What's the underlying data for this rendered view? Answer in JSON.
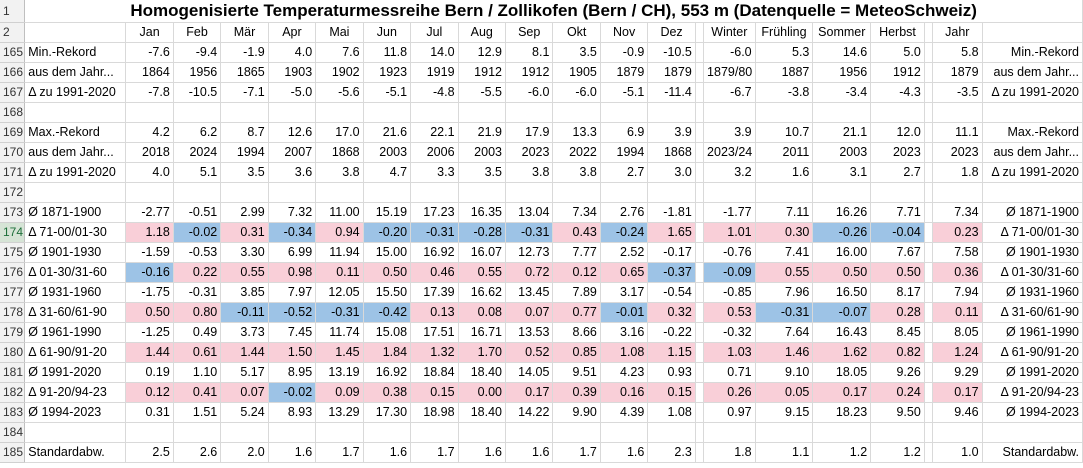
{
  "title": "Homogenisierte Temperaturmessreihe Bern / Zollikofen (Bern / CH), 553 m (Datenquelle = MeteoSchweiz)",
  "colors": {
    "positive": "#f9cfd8",
    "negative": "#9dc3e6",
    "grid": "#d9d9d9",
    "header_bg": "#f2f2f2"
  },
  "columns": [
    "Jan",
    "Feb",
    "Mär",
    "Apr",
    "Mai",
    "Jun",
    "Jul",
    "Aug",
    "Sep",
    "Okt",
    "Nov",
    "Dez",
    "",
    "Winter",
    "Frühling",
    "Sommer",
    "Herbst",
    "",
    "Jahr",
    ""
  ],
  "rows": [
    {
      "num": "1",
      "type": "title"
    },
    {
      "num": "2",
      "type": "header"
    },
    {
      "num": "165",
      "label": "Min.-Rekord",
      "right": "Min.-Rekord",
      "cells": [
        "-7.6",
        "-9.4",
        "-1.9",
        "4.0",
        "7.6",
        "11.8",
        "14.0",
        "12.9",
        "8.1",
        "3.5",
        "-0.9",
        "-10.5",
        "",
        "-6.0",
        "5.3",
        "14.6",
        "5.0",
        "",
        "5.8"
      ]
    },
    {
      "num": "166",
      "label": "aus dem Jahr...",
      "right": "aus dem Jahr...",
      "cells": [
        "1864",
        "1956",
        "1865",
        "1903",
        "1902",
        "1923",
        "1919",
        "1912",
        "1912",
        "1905",
        "1879",
        "1879",
        "",
        "1879/80",
        "1887",
        "1956",
        "1912",
        "",
        "1879"
      ]
    },
    {
      "num": "167",
      "label": "Δ zu 1991-2020",
      "right": "Δ zu 1991-2020",
      "cells": [
        "-7.8",
        "-10.5",
        "-7.1",
        "-5.0",
        "-5.6",
        "-5.1",
        "-4.8",
        "-5.5",
        "-6.0",
        "-6.0",
        "-5.1",
        "-11.4",
        "",
        "-6.7",
        "-3.8",
        "-3.4",
        "-4.3",
        "",
        "-3.5"
      ]
    },
    {
      "num": "168",
      "label": "",
      "right": "",
      "cells": []
    },
    {
      "num": "169",
      "label": "Max.-Rekord",
      "right": "Max.-Rekord",
      "cells": [
        "4.2",
        "6.2",
        "8.7",
        "12.6",
        "17.0",
        "21.6",
        "22.1",
        "21.9",
        "17.9",
        "13.3",
        "6.9",
        "3.9",
        "",
        "3.9",
        "10.7",
        "21.1",
        "12.0",
        "",
        "11.1"
      ]
    },
    {
      "num": "170",
      "label": "aus dem Jahr...",
      "right": "aus dem Jahr...",
      "cells": [
        "2018",
        "2024",
        "1994",
        "2007",
        "1868",
        "2003",
        "2006",
        "2003",
        "2023",
        "2022",
        "1994",
        "1868",
        "",
        "2023/24",
        "2011",
        "2003",
        "2023",
        "",
        "2023"
      ]
    },
    {
      "num": "171",
      "label": "Δ zu 1991-2020",
      "right": "Δ zu 1991-2020",
      "cells": [
        "4.0",
        "5.1",
        "3.5",
        "3.6",
        "3.8",
        "4.7",
        "3.3",
        "3.5",
        "3.8",
        "3.8",
        "2.7",
        "3.0",
        "",
        "3.2",
        "1.6",
        "3.1",
        "2.7",
        "",
        "1.8"
      ]
    },
    {
      "num": "172",
      "label": "",
      "right": "",
      "cells": []
    },
    {
      "num": "173",
      "label": "Ø 1871-1900",
      "right": "Ø 1871-1900",
      "cells": [
        "-2.77",
        "-0.51",
        "2.99",
        "7.32",
        "11.00",
        "15.19",
        "17.23",
        "16.35",
        "13.04",
        "7.34",
        "2.76",
        "-1.81",
        "",
        "-1.77",
        "7.11",
        "16.26",
        "7.71",
        "",
        "7.34"
      ]
    },
    {
      "num": "174",
      "label": "Δ 71-00/01-30",
      "right": "Δ 71-00/01-30",
      "colored": true,
      "selected": true,
      "cells": [
        "1.18",
        "-0.02",
        "0.31",
        "-0.34",
        "0.94",
        "-0.20",
        "-0.31",
        "-0.28",
        "-0.31",
        "0.43",
        "-0.24",
        "1.65",
        "",
        "1.01",
        "0.30",
        "-0.26",
        "-0.04",
        "",
        "0.23"
      ]
    },
    {
      "num": "175",
      "label": "Ø 1901-1930",
      "right": "Ø 1901-1930",
      "cells": [
        "-1.59",
        "-0.53",
        "3.30",
        "6.99",
        "11.94",
        "15.00",
        "16.92",
        "16.07",
        "12.73",
        "7.77",
        "2.52",
        "-0.17",
        "",
        "-0.76",
        "7.41",
        "16.00",
        "7.67",
        "",
        "7.58"
      ]
    },
    {
      "num": "176",
      "label": "Δ 01-30/31-60",
      "right": "Δ 01-30/31-60",
      "colored": true,
      "cells": [
        "-0.16",
        "0.22",
        "0.55",
        "0.98",
        "0.11",
        "0.50",
        "0.46",
        "0.55",
        "0.72",
        "0.12",
        "0.65",
        "-0.37",
        "",
        "-0.09",
        "0.55",
        "0.50",
        "0.50",
        "",
        "0.36"
      ]
    },
    {
      "num": "177",
      "label": "Ø 1931-1960",
      "right": "Ø 1931-1960",
      "cells": [
        "-1.75",
        "-0.31",
        "3.85",
        "7.97",
        "12.05",
        "15.50",
        "17.39",
        "16.62",
        "13.45",
        "7.89",
        "3.17",
        "-0.54",
        "",
        "-0.85",
        "7.96",
        "16.50",
        "8.17",
        "",
        "7.94"
      ]
    },
    {
      "num": "178",
      "label": "Δ 31-60/61-90",
      "right": "Δ 31-60/61-90",
      "colored": true,
      "cells": [
        "0.50",
        "0.80",
        "-0.11",
        "-0.52",
        "-0.31",
        "-0.42",
        "0.13",
        "0.08",
        "0.07",
        "0.77",
        "-0.01",
        "0.32",
        "",
        "0.53",
        "-0.31",
        "-0.07",
        "0.28",
        "",
        "0.11"
      ]
    },
    {
      "num": "179",
      "label": "Ø 1961-1990",
      "right": "Ø 1961-1990",
      "cells": [
        "-1.25",
        "0.49",
        "3.73",
        "7.45",
        "11.74",
        "15.08",
        "17.51",
        "16.71",
        "13.53",
        "8.66",
        "3.16",
        "-0.22",
        "",
        "-0.32",
        "7.64",
        "16.43",
        "8.45",
        "",
        "8.05"
      ]
    },
    {
      "num": "180",
      "label": "Δ 61-90/91-20",
      "right": "Δ 61-90/91-20",
      "colored": true,
      "cells": [
        "1.44",
        "0.61",
        "1.44",
        "1.50",
        "1.45",
        "1.84",
        "1.32",
        "1.70",
        "0.52",
        "0.85",
        "1.08",
        "1.15",
        "",
        "1.03",
        "1.46",
        "1.62",
        "0.82",
        "",
        "1.24"
      ]
    },
    {
      "num": "181",
      "label": "Ø 1991-2020",
      "right": "Ø 1991-2020",
      "cells": [
        "0.19",
        "1.10",
        "5.17",
        "8.95",
        "13.19",
        "16.92",
        "18.84",
        "18.40",
        "14.05",
        "9.51",
        "4.23",
        "0.93",
        "",
        "0.71",
        "9.10",
        "18.05",
        "9.26",
        "",
        "9.29"
      ]
    },
    {
      "num": "182",
      "label": "Δ 91-20/94-23",
      "right": "Δ 91-20/94-23",
      "colored": true,
      "cells": [
        "0.12",
        "0.41",
        "0.07",
        "-0.02",
        "0.09",
        "0.38",
        "0.15",
        "0.00",
        "0.17",
        "0.39",
        "0.16",
        "0.15",
        "",
        "0.26",
        "0.05",
        "0.17",
        "0.24",
        "",
        "0.17"
      ]
    },
    {
      "num": "183",
      "label": "Ø 1994-2023",
      "right": "Ø 1994-2023",
      "cells": [
        "0.31",
        "1.51",
        "5.24",
        "8.93",
        "13.29",
        "17.30",
        "18.98",
        "18.40",
        "14.22",
        "9.90",
        "4.39",
        "1.08",
        "",
        "0.97",
        "9.15",
        "18.23",
        "9.50",
        "",
        "9.46"
      ]
    },
    {
      "num": "184",
      "label": "",
      "right": "",
      "cells": []
    },
    {
      "num": "185",
      "label": "Standardabw.",
      "right": "Standardabw.",
      "cells": [
        "2.5",
        "2.6",
        "2.0",
        "1.6",
        "1.7",
        "1.6",
        "1.7",
        "1.6",
        "1.6",
        "1.7",
        "1.6",
        "2.3",
        "",
        "1.8",
        "1.1",
        "1.2",
        "1.2",
        "",
        "1.0"
      ]
    }
  ]
}
